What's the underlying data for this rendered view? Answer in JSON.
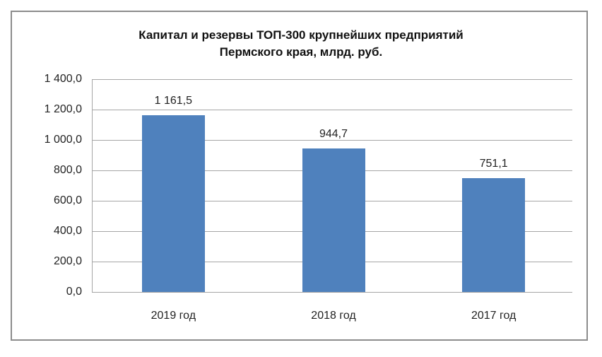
{
  "chart_data": {
    "type": "bar",
    "title": "Капитал и резервы ТОП-300 крупнейших предприятий Пермского края, млрд. руб.",
    "title_lines": [
      "Капитал и резервы ТОП-300 крупнейших предприятий",
      "Пермского края, млрд. руб."
    ],
    "categories": [
      "2019 год",
      "2018 год",
      "2017 год"
    ],
    "values": [
      1161.5,
      944.7,
      751.1
    ],
    "data_labels": [
      "1 161,5",
      "944,7",
      "751,1"
    ],
    "xlabel": "",
    "ylabel": "",
    "ylim": [
      0,
      1400
    ],
    "yticks": [
      0,
      200,
      400,
      600,
      800,
      1000,
      1200,
      1400
    ],
    "ytick_labels": [
      "0,0",
      "200,0",
      "400,0",
      "600,0",
      "800,0",
      "1 000,0",
      "1 200,0",
      "1 400,0"
    ],
    "grid": true,
    "legend": "none",
    "bar_color": "#4f81bd"
  }
}
